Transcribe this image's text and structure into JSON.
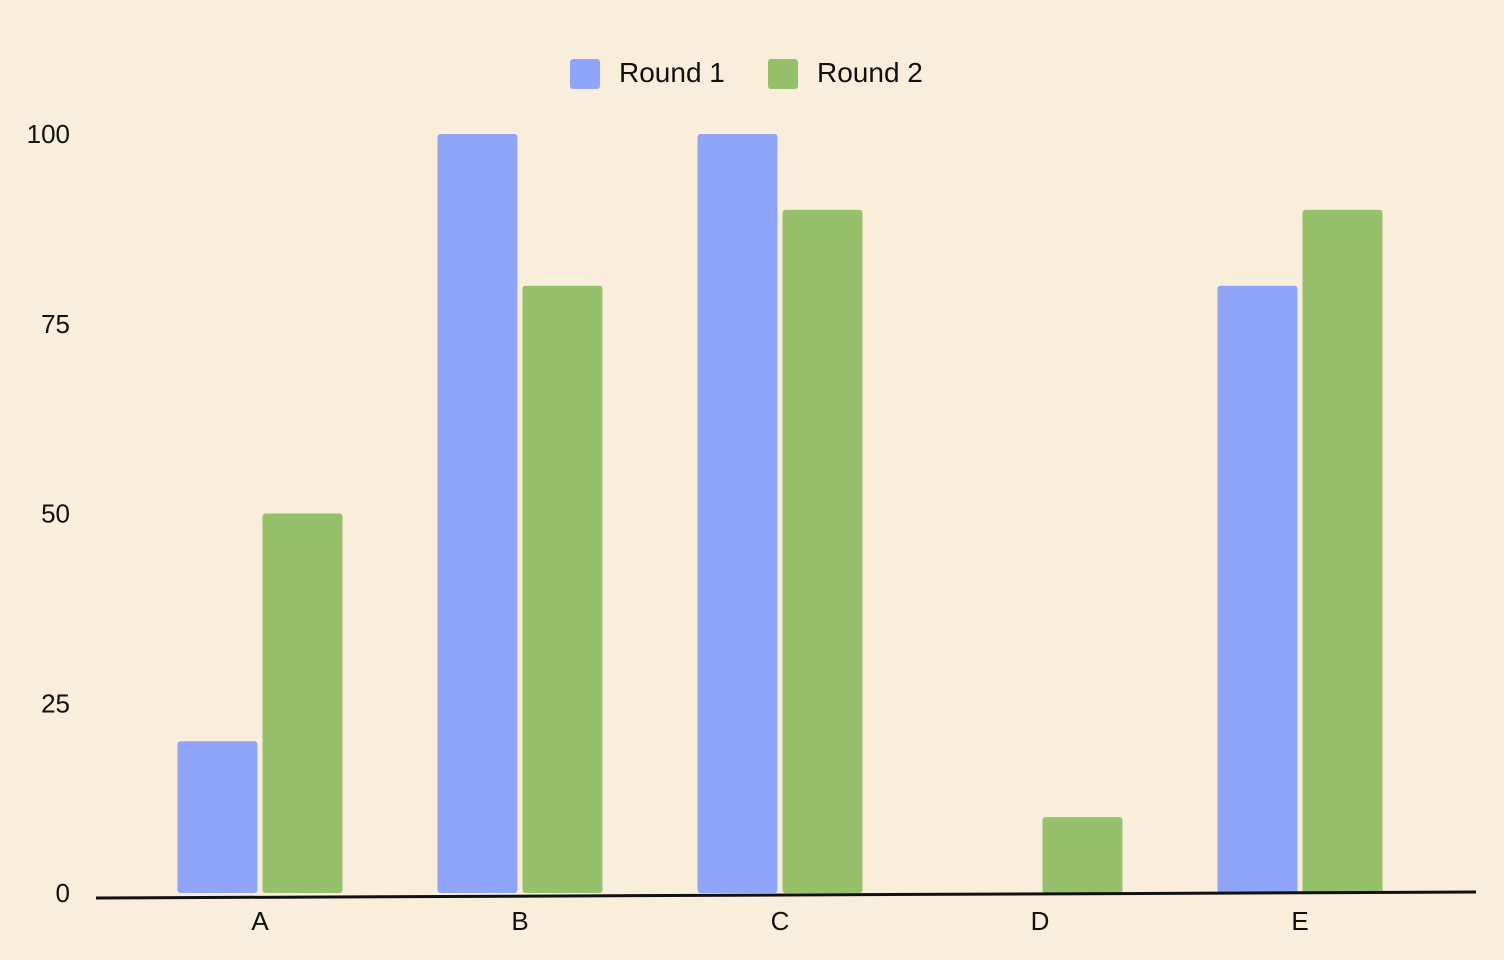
{
  "chart_data": {
    "type": "bar",
    "categories": [
      "A",
      "B",
      "C",
      "D",
      "E"
    ],
    "series": [
      {
        "name": "Round 1",
        "values": [
          20,
          100,
          100,
          0,
          80
        ],
        "color": "#8fa5f9"
      },
      {
        "name": "Round 2",
        "values": [
          50,
          80,
          90,
          10,
          90
        ],
        "color": "#97c06b"
      }
    ],
    "yticks": [
      0,
      25,
      50,
      75,
      100
    ],
    "ylim": [
      0,
      100
    ],
    "title": "",
    "xlabel": "",
    "ylabel": "",
    "legend": "top-center",
    "grid": false,
    "background": "#f9eedb"
  }
}
